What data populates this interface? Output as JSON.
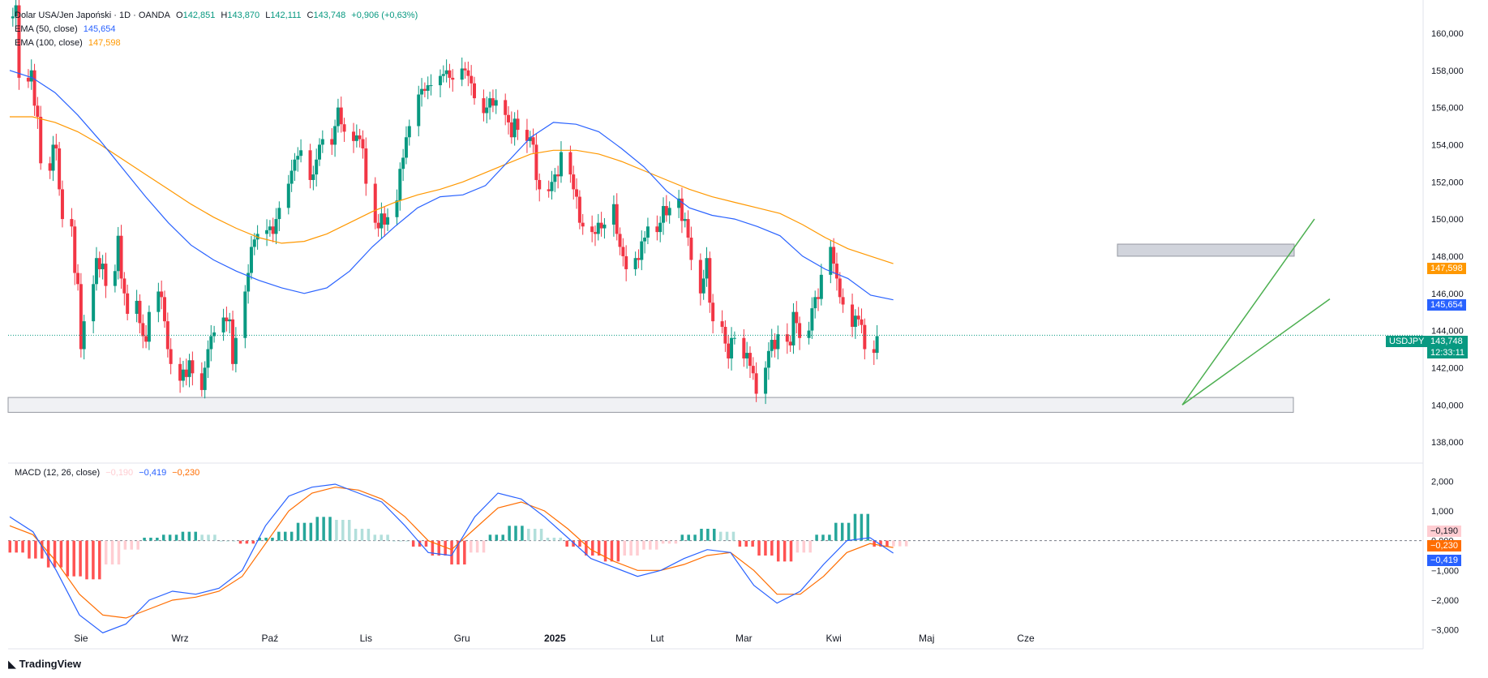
{
  "header": {
    "symbol_title": "Dolar USA/Jen Japoński · 1D · OANDA",
    "open_label": "O",
    "open": "142,851",
    "high_label": "H",
    "high": "143,870",
    "low_label": "L",
    "low": "142,111",
    "close_label": "C",
    "close": "143,748",
    "change": "+0,906 (+0,63%)",
    "ema50_label": "EMA (50, close)",
    "ema50_value": "145,654",
    "ema100_label": "EMA (100, close)",
    "ema100_value": "147,598",
    "macd_label": "MACD (12, 26, close)",
    "macd_hist": "−0,190",
    "macd_line": "−0,419",
    "macd_signal": "−0,230"
  },
  "tags": {
    "ema100": "147,598",
    "ema50": "145,654",
    "symbol": "USDJPY",
    "price": "143,748",
    "countdown": "12:33:11",
    "macd_hist": "−0,190",
    "macd_signal": "−0,230",
    "macd_line": "−0,419"
  },
  "brand": "TradingView",
  "colors": {
    "up": "#089981",
    "down": "#f23645",
    "ema50": "#2962ff",
    "ema100": "#ff9800",
    "hist_up_strong": "#26a69a",
    "hist_up_weak": "#b2dfdb",
    "hist_down_strong": "#ff5252",
    "hist_down_weak": "#ffcdd2",
    "trend": "#4caf50",
    "zone": "#d1d4dc"
  },
  "chart_data": [
    {
      "type": "candlestick",
      "title": "Dolar USA/Jen Japoński · 1D · OANDA",
      "ylim": [
        137,
        161
      ],
      "y_ticks": [
        "138,000",
        "140,000",
        "142,000",
        "144,000",
        "146,000",
        "148,000",
        "150,000",
        "152,000",
        "154,000",
        "156,000",
        "158,000",
        "160,000"
      ],
      "x_ticks": [
        "Sie",
        "Wrz",
        "Paź",
        "Lis",
        "Gru",
        "2025",
        "Lut",
        "Mar",
        "Kwi",
        "Maj",
        "Cze"
      ],
      "x_tick_dates": [
        "2024-08-01",
        "2024-09-02",
        "2024-10-01",
        "2024-11-01",
        "2024-12-02",
        "2025-01-01",
        "2025-02-03",
        "2025-03-03",
        "2025-04-01",
        "2025-05-01",
        "2025-06-02"
      ],
      "first_date": "2024-07-09",
      "close_path": [
        160.8,
        160.9,
        161.5,
        157.6,
        157.4,
        158.0,
        156.1,
        155.5,
        153.0,
        152.6,
        154.0,
        153.8,
        151.6,
        150.0,
        149.6,
        147.1,
        146.5,
        143.0,
        144.5,
        146.5,
        147.9,
        147.3,
        147.6,
        146.4,
        147.2,
        149.1,
        146.8,
        146.0,
        144.9,
        145.6,
        144.4,
        143.7,
        143.4,
        145.0,
        146.1,
        145.8,
        144.5,
        143.0,
        142.2,
        141.3,
        141.9,
        141.5,
        142.4,
        141.7,
        140.8,
        142.0,
        143.0,
        143.7,
        143.9,
        144.7,
        144.5,
        144.6,
        142.2,
        143.6,
        146.1,
        147.1,
        148.5,
        148.9,
        149.2,
        149.4,
        149.6,
        149.2,
        150.0,
        150.6,
        151.9,
        152.6,
        153.2,
        153.4,
        153.7,
        152.1,
        152.4,
        153.2,
        154.0,
        154.3,
        154.0,
        155.0,
        156.0,
        155.1,
        154.7,
        154.2,
        154.5,
        154.3,
        153.8,
        151.9,
        149.8,
        149.5,
        150.3,
        149.7,
        150.1,
        151.0,
        152.7,
        153.3,
        154.4,
        155.0,
        156.7,
        157.0,
        156.9,
        157.2,
        157.2,
        157.7,
        157.8,
        158.0,
        157.6,
        157.5,
        158.1,
        158.0,
        157.7,
        157.3,
        156.5,
        155.7,
        156.0,
        156.5,
        156.1,
        156.4,
        155.6,
        155.2,
        154.4,
        155.4,
        154.8,
        154.2,
        154.4,
        154.0,
        152.1,
        151.6,
        151.5,
        152.0,
        152.4,
        152.3,
        153.6,
        152.4,
        151.6,
        151.2,
        149.8,
        149.6,
        149.3,
        149.2,
        149.8,
        149.5,
        149.7,
        150.8,
        149.2,
        148.5,
        148.0,
        147.3,
        147.9,
        147.8,
        148.8,
        149.0,
        149.6,
        149.3,
        149.8,
        150.7,
        150.2,
        150.6,
        151.1,
        149.9,
        150.0,
        149.0,
        147.8,
        146.0,
        146.8,
        147.9,
        145.5,
        144.5,
        144.2,
        143.3,
        142.5,
        143.6,
        143.6,
        142.5,
        142.8,
        142.1,
        141.7,
        140.6,
        142.0,
        142.9,
        143.5,
        143.0,
        143.8,
        143.4,
        143.2,
        145.0,
        144.4,
        143.6,
        144.0,
        145.2,
        145.8,
        145.7,
        147.0,
        148.5,
        147.6,
        146.8,
        145.8,
        145.4,
        144.2,
        144.8,
        144.6,
        144.3,
        143.0,
        142.8,
        143.7
      ]
    },
    {
      "type": "line",
      "title": "EMA (50, close)",
      "series": [
        {
          "name": "EMA (50, close)",
          "values": [
            158.0,
            157.6,
            156.8,
            155.6,
            154.2,
            152.7,
            151.2,
            149.8,
            148.6,
            147.8,
            147.2,
            146.7,
            146.3,
            146.0,
            146.3,
            147.2,
            148.5,
            149.6,
            150.6,
            151.2,
            151.3,
            151.8,
            153.1,
            154.4,
            155.2,
            155.1,
            154.7,
            153.8,
            152.8,
            151.5,
            150.6,
            150.2,
            150.0,
            149.6,
            149.1,
            148.0,
            147.3,
            146.8,
            145.9,
            145.654
          ]
        }
      ],
      "y_units": "JPY"
    },
    {
      "type": "line",
      "title": "EMA (100, close)",
      "series": [
        {
          "name": "EMA (100, close)",
          "values": [
            155.5,
            155.5,
            155.2,
            154.7,
            154.0,
            153.2,
            152.4,
            151.6,
            150.8,
            150.1,
            149.5,
            149.0,
            148.7,
            148.8,
            149.2,
            149.8,
            150.4,
            150.9,
            151.3,
            151.6,
            152.0,
            152.5,
            153.0,
            153.5,
            153.7,
            153.7,
            153.5,
            153.1,
            152.6,
            152.1,
            151.6,
            151.2,
            150.9,
            150.6,
            150.3,
            149.7,
            149.0,
            148.4,
            148.0,
            147.598
          ]
        }
      ],
      "y_units": "JPY"
    },
    {
      "type": "bar",
      "title": "MACD (12, 26, close)",
      "ylim": [
        -3.5,
        2.5
      ],
      "y_ticks": [
        "−3,000",
        "−2,000",
        "−1,000",
        "0,000",
        "1,000",
        "2,000"
      ],
      "series": [
        {
          "name": "Histogram",
          "values": [
            -0.4,
            -0.6,
            -0.9,
            -1.2,
            -1.3,
            -0.8,
            -0.3,
            0.1,
            0.2,
            0.3,
            0.2,
            0.0,
            -0.1,
            0.1,
            0.3,
            0.6,
            0.8,
            0.7,
            0.4,
            0.2,
            0.0,
            -0.2,
            -0.5,
            -0.8,
            -0.4,
            0.2,
            0.5,
            0.4,
            0.1,
            -0.2,
            -0.5,
            -0.7,
            -0.5,
            -0.3,
            -0.1,
            0.2,
            0.4,
            0.3,
            -0.2,
            -0.5,
            -0.7,
            -0.4,
            0.2,
            0.6,
            0.9,
            -0.2,
            -0.19
          ]
        },
        {
          "name": "MACD",
          "values": [
            0.8,
            0.3,
            -1.0,
            -2.5,
            -3.1,
            -2.8,
            -2.0,
            -1.7,
            -1.8,
            -1.6,
            -1.0,
            0.5,
            1.5,
            1.8,
            1.9,
            1.6,
            1.3,
            0.5,
            -0.4,
            -0.5,
            0.8,
            1.6,
            1.4,
            0.8,
            0.1,
            -0.6,
            -0.9,
            -1.2,
            -1.0,
            -0.6,
            -0.3,
            -0.4,
            -1.5,
            -2.1,
            -1.7,
            -0.8,
            0.0,
            0.1,
            -0.419
          ]
        },
        {
          "name": "Signal",
          "values": [
            0.5,
            0.2,
            -0.7,
            -1.8,
            -2.5,
            -2.6,
            -2.3,
            -2.0,
            -1.9,
            -1.7,
            -1.2,
            -0.1,
            1.0,
            1.6,
            1.8,
            1.7,
            1.4,
            0.8,
            0.0,
            -0.3,
            0.4,
            1.1,
            1.3,
            1.0,
            0.4,
            -0.3,
            -0.7,
            -1.0,
            -1.0,
            -0.8,
            -0.5,
            -0.4,
            -1.0,
            -1.8,
            -1.8,
            -1.2,
            -0.4,
            -0.1,
            -0.23
          ]
        }
      ]
    }
  ]
}
